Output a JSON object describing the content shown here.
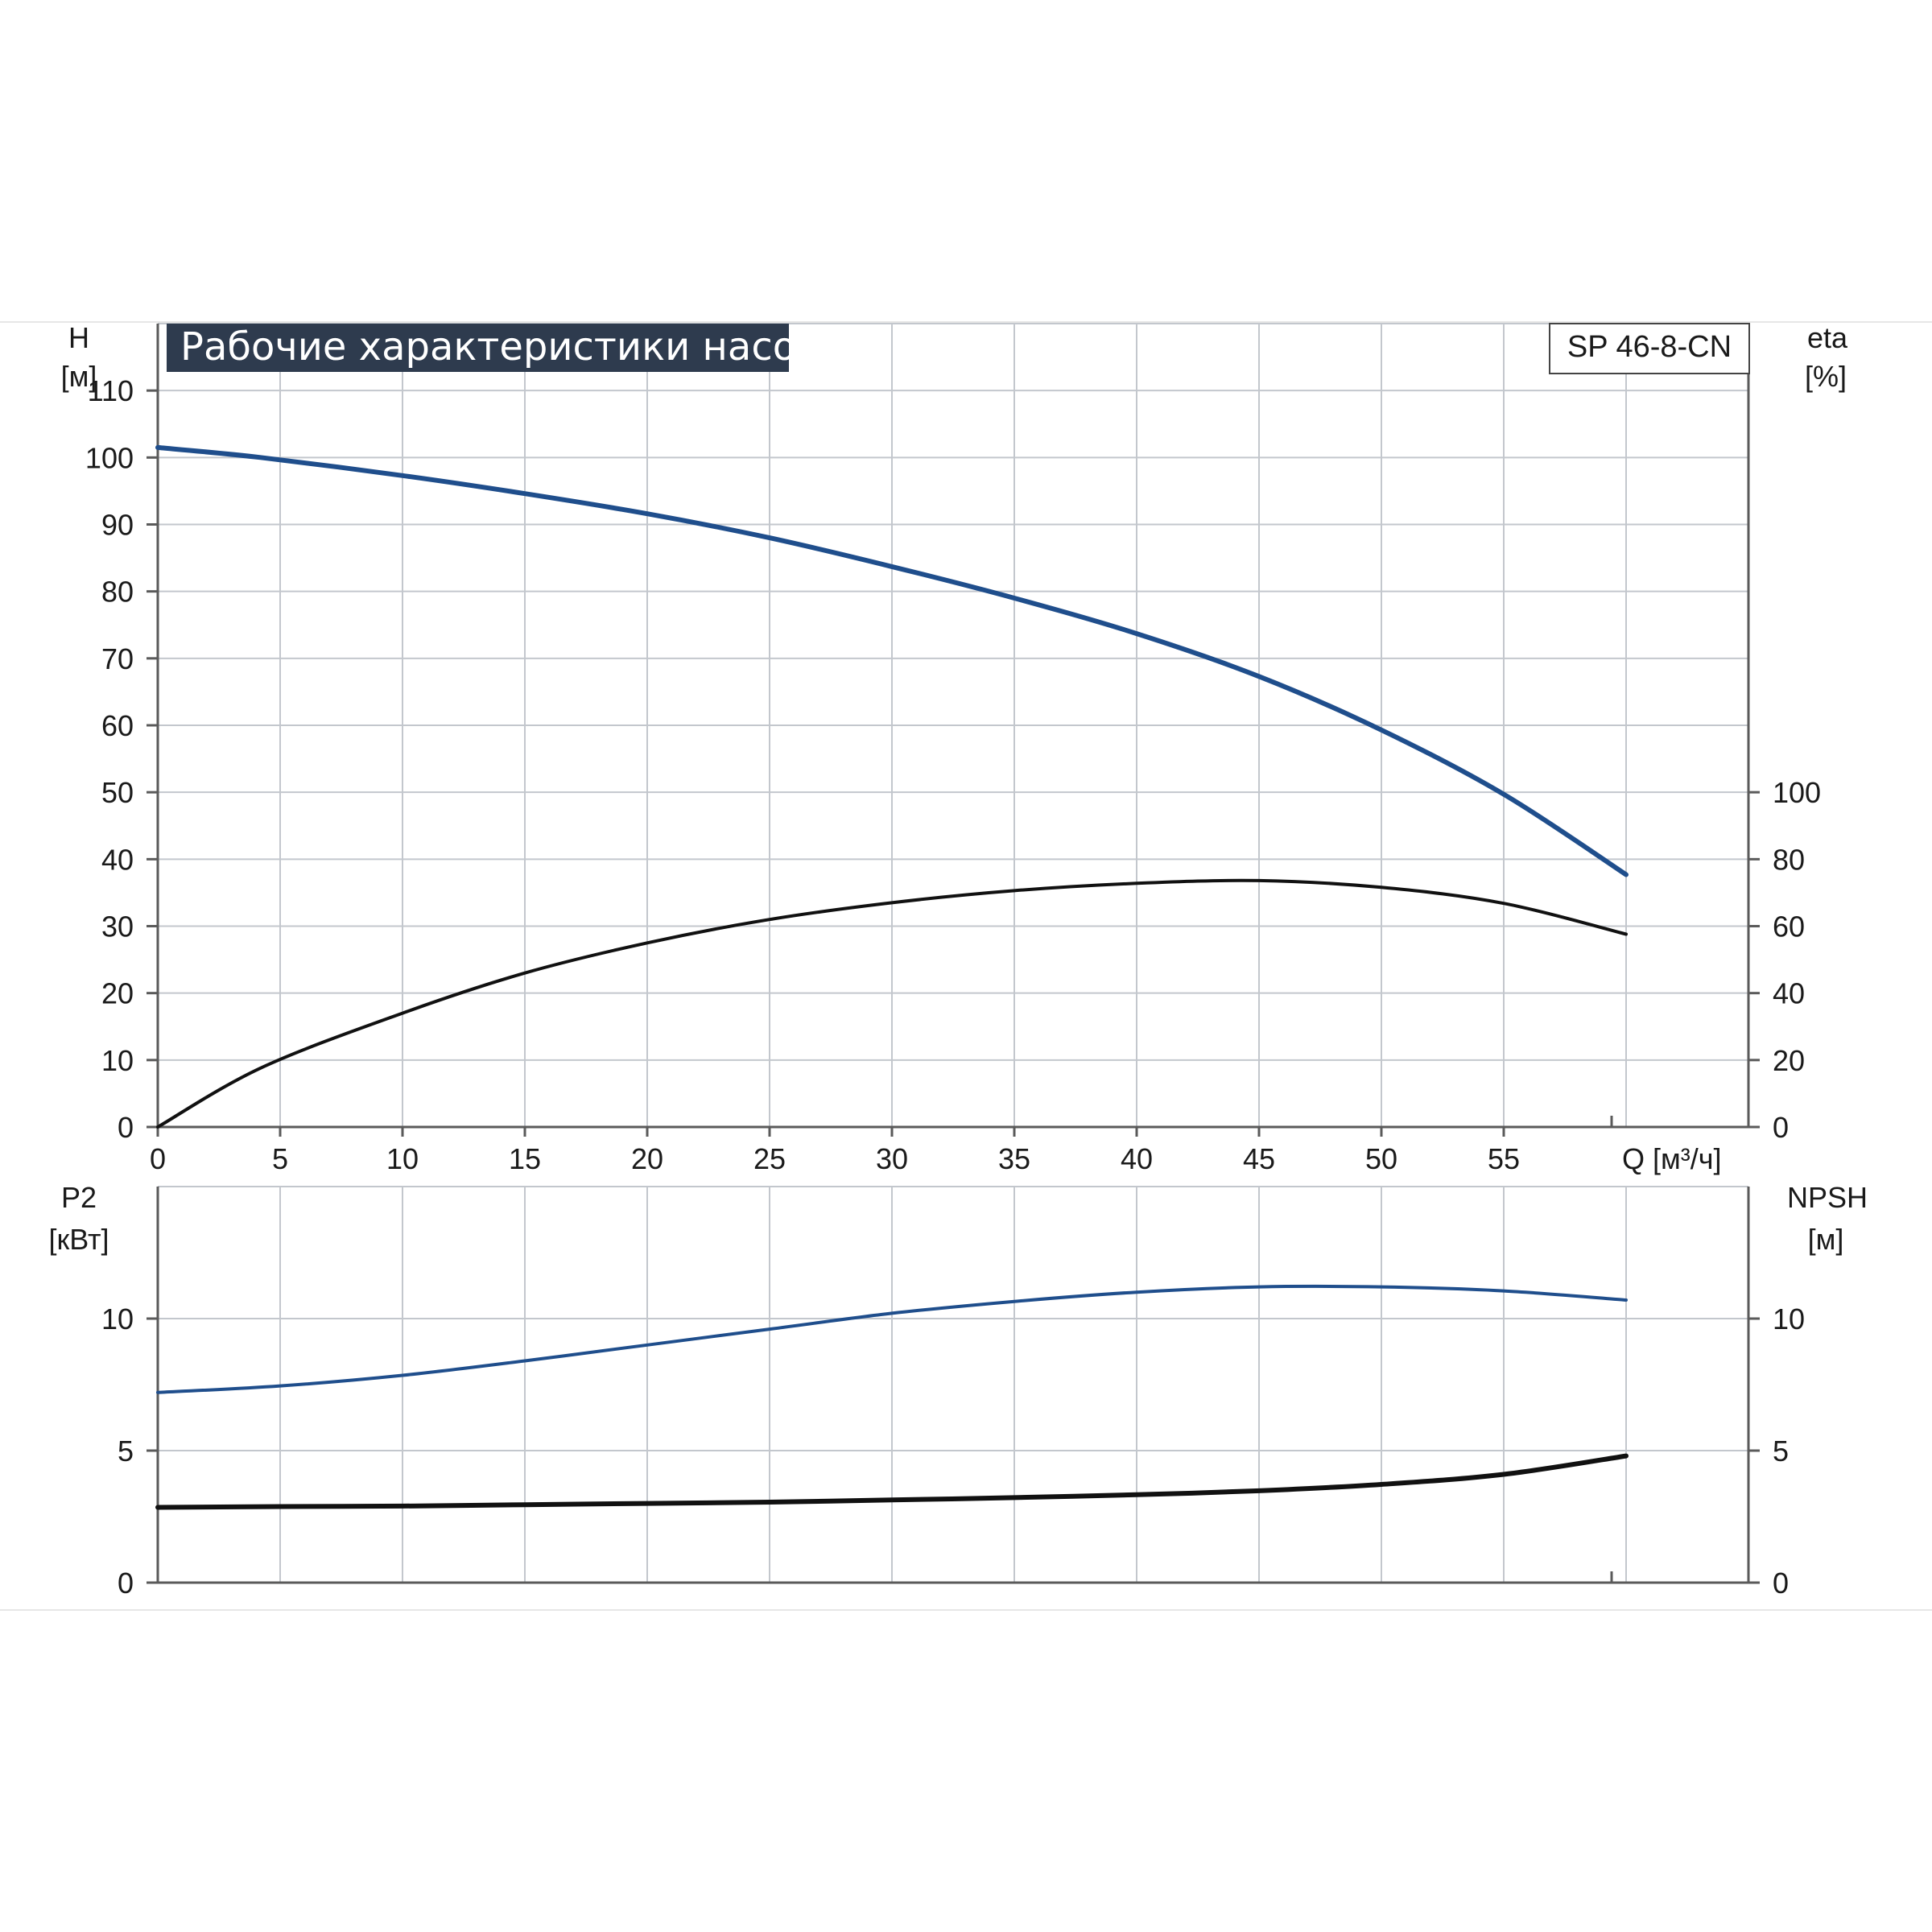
{
  "colors": {
    "grid": "#c3c7cd",
    "axis": "#5a5a5a",
    "title_bg": "#2e3b4e",
    "curve_blue": "#1f4e8c",
    "curve_black": "#111111"
  },
  "title": "Рабочие характеристики насоса",
  "model": "SP 46-8-CN",
  "chart_data": [
    {
      "type": "line",
      "x_label": "Q [м³/ч]",
      "x_ticks": [
        "0",
        "5",
        "10",
        "15",
        "20",
        "25",
        "30",
        "35",
        "40",
        "45",
        "50",
        "55"
      ],
      "xlim": [
        0,
        65
      ],
      "y_left": {
        "label_line1": "H",
        "label_line2": "[м]",
        "ticks": [
          "0",
          "10",
          "20",
          "30",
          "40",
          "50",
          "60",
          "70",
          "80",
          "90",
          "100",
          "110"
        ],
        "lim": [
          0,
          120
        ]
      },
      "y_right": {
        "label_line1": "eta",
        "label_line2": "[%]",
        "ticks": [
          "0",
          "20",
          "40",
          "60",
          "80",
          "100"
        ],
        "lim": [
          0,
          240
        ]
      },
      "grid": true,
      "series": [
        {
          "key": "H",
          "axis": "left",
          "color": "#1f4e8c",
          "x": [
            0,
            4.2,
            10,
            15,
            20,
            25,
            30,
            35,
            40,
            45,
            50,
            55,
            60
          ],
          "y": [
            101.5,
            100,
            97.3,
            94.6,
            91.6,
            88,
            83.7,
            79,
            73.7,
            67.3,
            59.3,
            49.7,
            37.7
          ]
        },
        {
          "key": "eta",
          "axis": "right",
          "color": "#111111",
          "x": [
            0,
            4.2,
            10,
            15,
            20,
            25,
            30,
            35,
            40,
            45,
            50,
            55,
            60
          ],
          "y": [
            0,
            17.6,
            34,
            46,
            55,
            62,
            67,
            70.6,
            72.8,
            73.6,
            71.6,
            66.8,
            57.6
          ]
        }
      ]
    },
    {
      "type": "line",
      "xlim": [
        0,
        65
      ],
      "y_left": {
        "label_line1": "P2",
        "label_line2": "[кВт]",
        "ticks": [
          "0",
          "5",
          "10"
        ],
        "lim": [
          0,
          15
        ]
      },
      "y_right": {
        "label_line1": "NPSH",
        "label_line2": "[м]",
        "ticks": [
          "0",
          "5",
          "10"
        ],
        "lim": [
          0,
          15
        ]
      },
      "grid": true,
      "series": [
        {
          "key": "P2",
          "axis": "left",
          "color": "#1f4e8c",
          "x": [
            0,
            5,
            10,
            15,
            20,
            25,
            30,
            35,
            40,
            45,
            50,
            55,
            60
          ],
          "y": [
            7.2,
            7.45,
            7.85,
            8.4,
            9.0,
            9.6,
            10.2,
            10.65,
            11.0,
            11.2,
            11.2,
            11.05,
            10.7
          ]
        },
        {
          "key": "NPSH",
          "axis": "right",
          "color": "#111111",
          "x": [
            0,
            5,
            10,
            15,
            20,
            25,
            30,
            35,
            40,
            45,
            50,
            55,
            60
          ],
          "y": [
            2.85,
            2.88,
            2.9,
            2.95,
            3.0,
            3.05,
            3.13,
            3.22,
            3.33,
            3.48,
            3.72,
            4.1,
            4.8
          ]
        }
      ]
    }
  ]
}
